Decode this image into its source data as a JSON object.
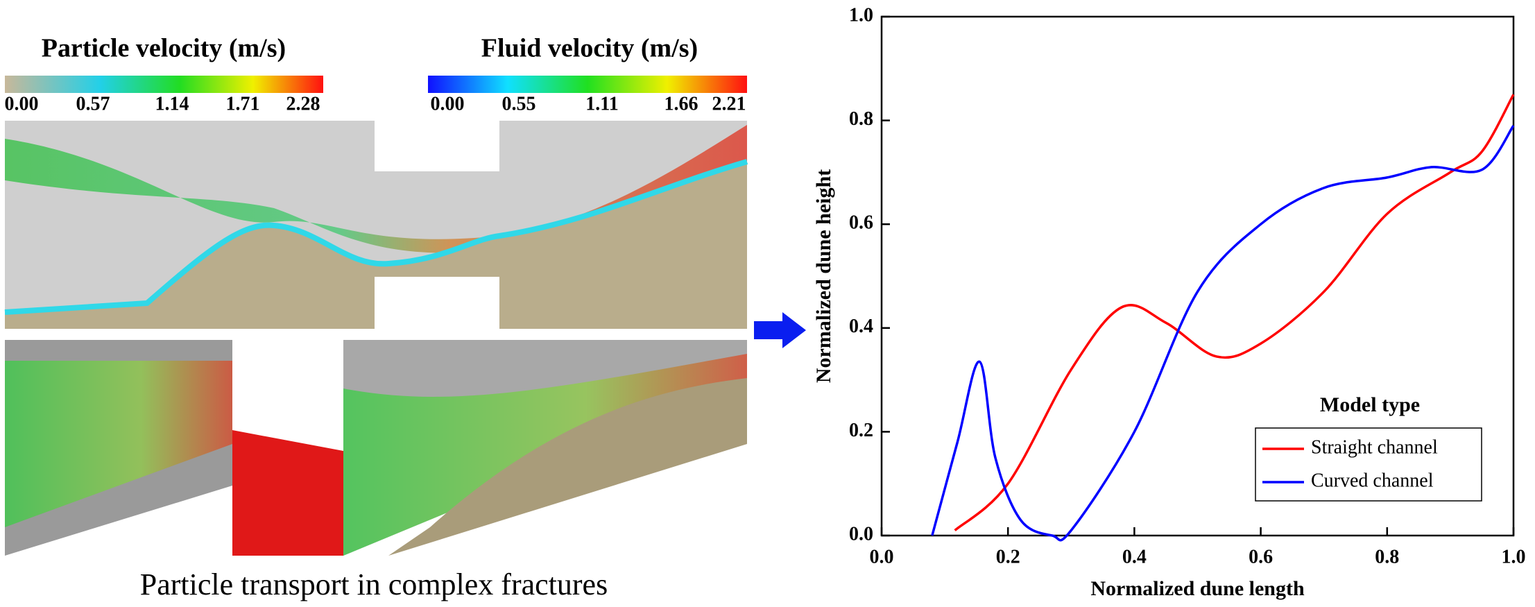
{
  "colorbars": [
    {
      "title": "Particle velocity (m/s)",
      "ticks": [
        "0.00",
        "0.57",
        "1.14",
        "1.71",
        "2.28"
      ]
    },
    {
      "title": "Fluid velocity (m/s)",
      "ticks": [
        "0.00",
        "0.55",
        "1.11",
        "1.66",
        "2.21"
      ]
    }
  ],
  "caption": "Particle transport in complex fractures",
  "chart_data": {
    "type": "line",
    "xlabel": "Normalized dune length",
    "ylabel": "Normalized dune height",
    "xlim": [
      0,
      1
    ],
    "ylim": [
      0,
      1
    ],
    "xticks": [
      {
        "value": 0,
        "label": "0.0"
      },
      {
        "value": 0.2,
        "label": "0.2"
      },
      {
        "value": 0.4,
        "label": "0.4"
      },
      {
        "value": 0.6,
        "label": "0.6"
      },
      {
        "value": 0.8,
        "label": "0.8"
      },
      {
        "value": 1,
        "label": "1.0"
      }
    ],
    "yticks": [
      {
        "value": 0,
        "label": "0.0"
      },
      {
        "value": 0.2,
        "label": "0.2"
      },
      {
        "value": 0.4,
        "label": "0.4"
      },
      {
        "value": 0.6,
        "label": "0.6"
      },
      {
        "value": 0.8,
        "label": "0.8"
      },
      {
        "value": 1,
        "label": "1.0"
      }
    ],
    "legend_title": "Model type",
    "legend": "lower right",
    "series": [
      {
        "name": "Straight channel",
        "color": "#ff0000",
        "x": [
          0.116,
          0.2,
          0.3,
          0.38,
          0.45,
          0.53,
          0.6,
          0.7,
          0.8,
          0.9,
          0.95,
          1.0
        ],
        "values": [
          0.01,
          0.1,
          0.32,
          0.44,
          0.41,
          0.345,
          0.37,
          0.47,
          0.62,
          0.7,
          0.74,
          0.85
        ]
      },
      {
        "name": "Curved channel",
        "color": "#0000ff",
        "x": [
          0.08,
          0.12,
          0.155,
          0.18,
          0.22,
          0.27,
          0.3,
          0.4,
          0.5,
          0.6,
          0.7,
          0.8,
          0.87,
          0.95,
          1.0
        ],
        "values": [
          0.0,
          0.18,
          0.335,
          0.15,
          0.03,
          0.0,
          0.01,
          0.2,
          0.47,
          0.6,
          0.67,
          0.69,
          0.71,
          0.705,
          0.79
        ]
      }
    ]
  }
}
